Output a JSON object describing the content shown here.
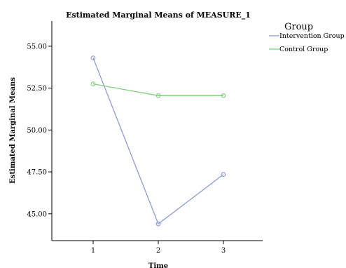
{
  "chart_data": {
    "type": "line",
    "title": "Estimated Marginal Means of MEASURE_1",
    "xlabel": "Time",
    "ylabel": "Estimated Marginal Means",
    "categories": [
      "1",
      "2",
      "3"
    ],
    "yticks": [
      "45.00",
      "47.50",
      "50.00",
      "52.50",
      "55.00"
    ],
    "ylim": [
      43.4,
      56.5
    ],
    "grid": false,
    "legend": {
      "title": "Group",
      "placement": "top-right"
    },
    "series": [
      {
        "name": "Intervention Group",
        "color": "#8e9bd6",
        "values": [
          54.3,
          44.4,
          47.35
        ]
      },
      {
        "name": "Control Group",
        "color": "#7fcf7f",
        "values": [
          52.75,
          52.05,
          52.05
        ]
      }
    ]
  }
}
